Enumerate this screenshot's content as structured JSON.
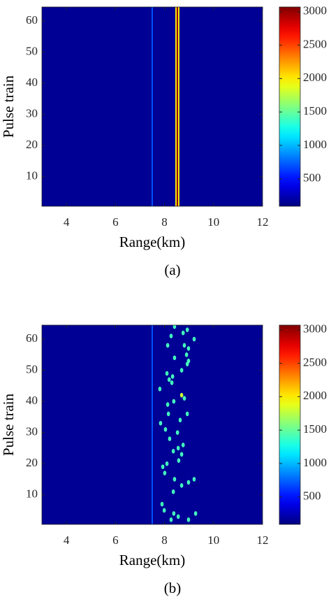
{
  "chart_data": [
    {
      "type": "heatmap",
      "caption": "(a)",
      "xlabel": "Range(km)",
      "ylabel": "Pulse train",
      "colormap": "jet",
      "xlim": [
        3,
        12
      ],
      "xticks": [
        4,
        6,
        8,
        10,
        12
      ],
      "ylim": [
        0.5,
        64.5
      ],
      "yticks": [
        10,
        20,
        30,
        40,
        50,
        60
      ],
      "clim": [
        90,
        3070
      ],
      "cticks": [
        500,
        1000,
        1500,
        2000,
        2500,
        3000
      ],
      "background": 150,
      "stripes": {
        "x": [
          7.5,
          8.47,
          8.53,
          8.58
        ],
        "values": [
          700,
          2000,
          3000,
          2000
        ]
      }
    },
    {
      "type": "heatmap",
      "caption": "(b)",
      "xlabel": "Range(km)",
      "ylabel": "Pulse train",
      "colormap": "jet",
      "xlim": [
        3,
        12
      ],
      "xticks": [
        4,
        6,
        8,
        10,
        12
      ],
      "ylim": [
        0.5,
        64.5
      ],
      "yticks": [
        10,
        20,
        30,
        40,
        50,
        60
      ],
      "clim": [
        90,
        3070
      ],
      "cticks": [
        500,
        1000,
        1500,
        2000,
        2500,
        3000
      ],
      "background": 150,
      "stripes": {
        "x": [
          7.5
        ],
        "values": [
          700
        ]
      },
      "points": {
        "x": [
          8.41,
          8.93,
          8.76,
          9.21,
          8.27,
          8.81,
          8.13,
          8.98,
          8.9,
          8.41,
          8.98,
          8.93,
          8.7,
          8.1,
          8.33,
          8.19,
          8.3,
          7.81,
          8.7,
          8.81,
          8.38,
          8.13,
          8.16,
          8.93,
          7.84,
          8.64,
          8.04,
          8.53,
          8.21,
          8.76,
          8.56,
          8.36,
          8.7,
          8.58,
          8.1,
          7.93,
          8.01,
          9.21,
          8.98,
          8.41,
          8.7,
          8.36,
          7.9,
          7.99,
          8.38,
          8.56,
          8.98,
          9.27,
          8.27
        ],
        "y": [
          64,
          63,
          62,
          60,
          61,
          58,
          58,
          57,
          55,
          54,
          53,
          52,
          50,
          49,
          48,
          47,
          46,
          44,
          42,
          41,
          40,
          39,
          36,
          36,
          33,
          34,
          31,
          30,
          28,
          26,
          25,
          24,
          23,
          21,
          20,
          19,
          17,
          15,
          14,
          15,
          13,
          11,
          7,
          5,
          4,
          3,
          2,
          4,
          2
        ],
        "values": [
          1400,
          1400,
          1400,
          1400,
          1400,
          1400,
          1400,
          1400,
          1400,
          1400,
          1400,
          1400,
          1400,
          1400,
          1400,
          1400,
          1400,
          1400,
          1800,
          1400,
          1400,
          1400,
          1400,
          1400,
          1400,
          1400,
          1400,
          1400,
          1400,
          1400,
          1400,
          1400,
          1400,
          1400,
          1400,
          1400,
          1400,
          1400,
          1400,
          1400,
          1400,
          1400,
          1400,
          1400,
          1400,
          1400,
          1400,
          1400,
          1400
        ]
      }
    }
  ]
}
